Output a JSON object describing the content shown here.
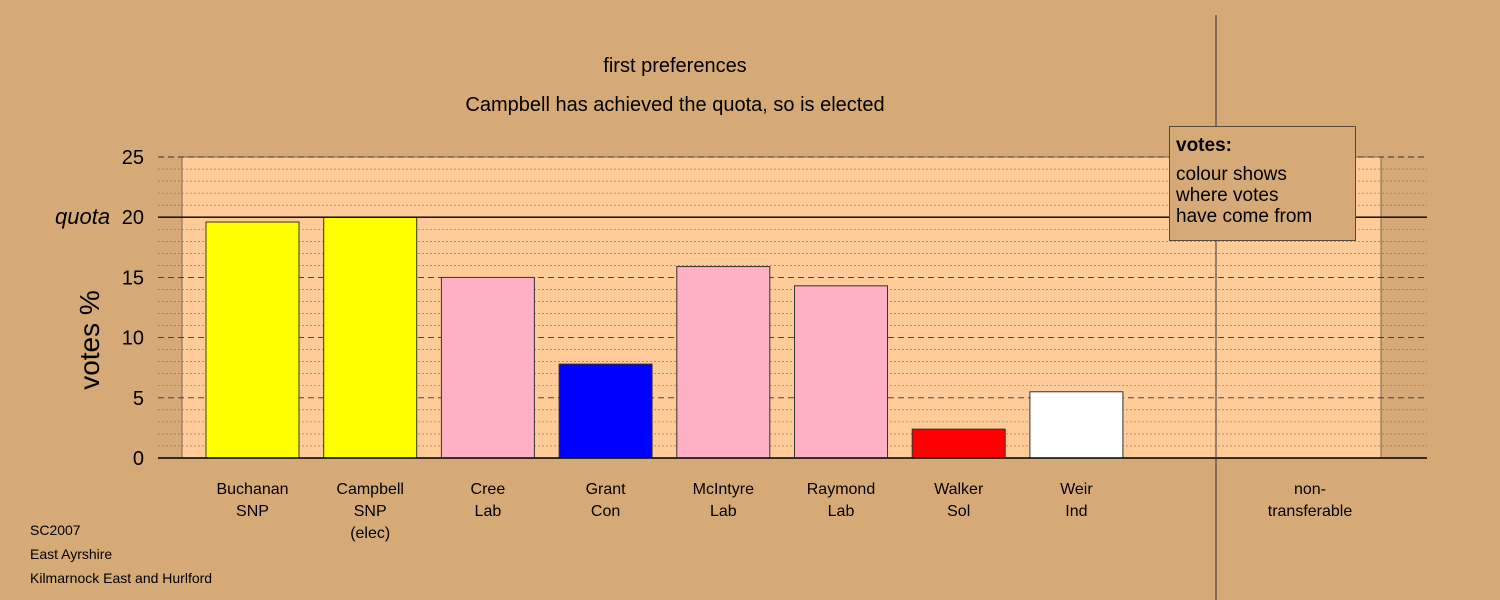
{
  "chart_data": {
    "type": "bar",
    "title": "first preferences",
    "subtitle": "Campbell has achieved the quota, so is elected",
    "ylabel": "votes %",
    "ylim": [
      0,
      25
    ],
    "yticks": [
      0,
      5,
      10,
      15,
      20,
      25
    ],
    "quota": {
      "label": "quota",
      "value": 20
    },
    "categories": [
      {
        "lines": [
          "Buchanan",
          "SNP"
        ],
        "value": 19.6,
        "color": "#ffff00"
      },
      {
        "lines": [
          "Campbell",
          "SNP",
          "(elec)"
        ],
        "value": 20.0,
        "color": "#ffff00"
      },
      {
        "lines": [
          "Cree",
          "Lab"
        ],
        "value": 15.0,
        "color": "#ffb0c4"
      },
      {
        "lines": [
          "Grant",
          "Con"
        ],
        "value": 7.8,
        "color": "#0000ff"
      },
      {
        "lines": [
          "McIntyre",
          "Lab"
        ],
        "value": 15.9,
        "color": "#ffb0c4"
      },
      {
        "lines": [
          "Raymond",
          "Lab"
        ],
        "value": 14.3,
        "color": "#ffb0c4"
      },
      {
        "lines": [
          "Walker",
          "Sol"
        ],
        "value": 2.4,
        "color": "#ff0000"
      },
      {
        "lines": [
          "Weir",
          "Ind"
        ],
        "value": 5.5,
        "color": "#ffffff"
      },
      {
        "lines": [
          "non-",
          "transferable"
        ],
        "value": 0,
        "color": "#d5aa77"
      }
    ],
    "grid": true
  },
  "legend": {
    "title": "votes:",
    "lines": [
      "colour shows",
      "where votes",
      "have come from"
    ]
  },
  "footer": [
    "SC2007",
    "East Ayrshire",
    "Kilmarnock East and Hurlford"
  ],
  "colors": {
    "background": "#d5aa77",
    "plot_area": "#ffcc99"
  }
}
